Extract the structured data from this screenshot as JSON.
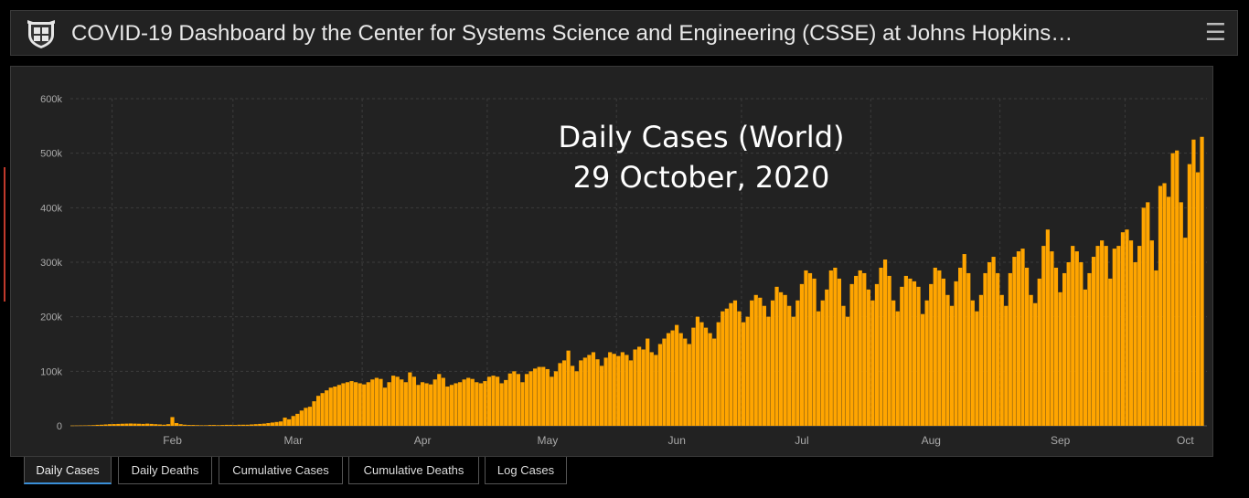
{
  "header": {
    "title": "COVID-19 Dashboard by the Center for Systems Science and Engineering (CSSE) at Johns Hopkins…",
    "menu_icon": "hamburger-menu-icon"
  },
  "tabs": [
    {
      "label": "Daily Cases",
      "active": true
    },
    {
      "label": "Daily Deaths",
      "active": false
    },
    {
      "label": "Cumulative Cases",
      "active": false
    },
    {
      "label": "Cumulative Deaths",
      "active": false
    },
    {
      "label": "Log Cases",
      "active": false
    }
  ],
  "chart_data": {
    "type": "bar",
    "title_line1": "Daily Cases (World)",
    "title_line2": "29 October, 2020",
    "bar_color": "#ffa500",
    "background": "#222222",
    "grid": true,
    "ylim": [
      0,
      600000
    ],
    "y_ticks": [
      {
        "value": 0,
        "label": "0"
      },
      {
        "value": 100000,
        "label": "100k"
      },
      {
        "value": 200000,
        "label": "200k"
      },
      {
        "value": 300000,
        "label": "300k"
      },
      {
        "value": 400000,
        "label": "400k"
      },
      {
        "value": 500000,
        "label": "500k"
      },
      {
        "value": 600000,
        "label": "600k"
      }
    ],
    "x_start_date": "2020-01-22",
    "x_ticks": [
      {
        "date": "2020-02-01",
        "label": "Feb"
      },
      {
        "date": "2020-03-01",
        "label": "Mar"
      },
      {
        "date": "2020-04-01",
        "label": "Apr"
      },
      {
        "date": "2020-05-01",
        "label": "May"
      },
      {
        "date": "2020-06-01",
        "label": "Jun"
      },
      {
        "date": "2020-07-01",
        "label": "Jul"
      },
      {
        "date": "2020-08-01",
        "label": "Aug"
      },
      {
        "date": "2020-09-01",
        "label": "Sep"
      },
      {
        "date": "2020-10-01",
        "label": "Oct"
      }
    ],
    "values": [
      500,
      600,
      700,
      800,
      1000,
      1200,
      1800,
      2000,
      2500,
      3000,
      3200,
      3500,
      3800,
      4000,
      4200,
      4000,
      3800,
      3500,
      4000,
      3500,
      3000,
      2500,
      2000,
      3000,
      16000,
      5000,
      3000,
      2000,
      1500,
      1500,
      1200,
      1000,
      1000,
      1500,
      1500,
      1200,
      1500,
      1800,
      1800,
      1500,
      2000,
      2000,
      2000,
      2500,
      3000,
      3500,
      4000,
      5000,
      6000,
      7000,
      8000,
      15000,
      12000,
      18000,
      22000,
      28000,
      33000,
      35000,
      45000,
      55000,
      60000,
      65000,
      70000,
      72000,
      75000,
      78000,
      80000,
      82000,
      80000,
      78000,
      76000,
      80000,
      85000,
      88000,
      86000,
      70000,
      80000,
      92000,
      90000,
      85000,
      80000,
      98000,
      90000,
      75000,
      80000,
      78000,
      76000,
      85000,
      95000,
      88000,
      72000,
      75000,
      78000,
      80000,
      85000,
      88000,
      86000,
      80000,
      78000,
      82000,
      90000,
      92000,
      90000,
      78000,
      84000,
      96000,
      100000,
      95000,
      80000,
      95000,
      100000,
      105000,
      108000,
      108000,
      104000,
      90000,
      100000,
      115000,
      120000,
      138000,
      110000,
      100000,
      120000,
      125000,
      130000,
      135000,
      122000,
      110000,
      125000,
      135000,
      132000,
      128000,
      135000,
      130000,
      120000,
      140000,
      145000,
      140000,
      160000,
      135000,
      130000,
      150000,
      160000,
      170000,
      175000,
      185000,
      170000,
      160000,
      150000,
      180000,
      200000,
      190000,
      180000,
      170000,
      160000,
      190000,
      210000,
      215000,
      225000,
      230000,
      210000,
      190000,
      200000,
      230000,
      240000,
      235000,
      220000,
      200000,
      230000,
      255000,
      245000,
      240000,
      220000,
      200000,
      230000,
      260000,
      285000,
      280000,
      270000,
      210000,
      230000,
      250000,
      285000,
      290000,
      270000,
      220000,
      200000,
      260000,
      275000,
      285000,
      280000,
      250000,
      230000,
      260000,
      290000,
      305000,
      275000,
      230000,
      210000,
      255000,
      275000,
      270000,
      265000,
      255000,
      205000,
      230000,
      260000,
      290000,
      285000,
      270000,
      240000,
      220000,
      265000,
      290000,
      315000,
      280000,
      230000,
      210000,
      240000,
      280000,
      300000,
      310000,
      280000,
      240000,
      220000,
      280000,
      310000,
      320000,
      325000,
      290000,
      240000,
      225000,
      270000,
      330000,
      360000,
      320000,
      290000,
      245000,
      280000,
      300000,
      330000,
      320000,
      300000,
      250000,
      280000,
      310000,
      330000,
      340000,
      330000,
      270000,
      325000,
      330000,
      355000,
      360000,
      340000,
      300000,
      330000,
      400000,
      410000,
      340000,
      285000,
      440000,
      445000,
      420000,
      500000,
      505000,
      410000,
      345000,
      480000,
      525000,
      465000,
      530000
    ]
  }
}
